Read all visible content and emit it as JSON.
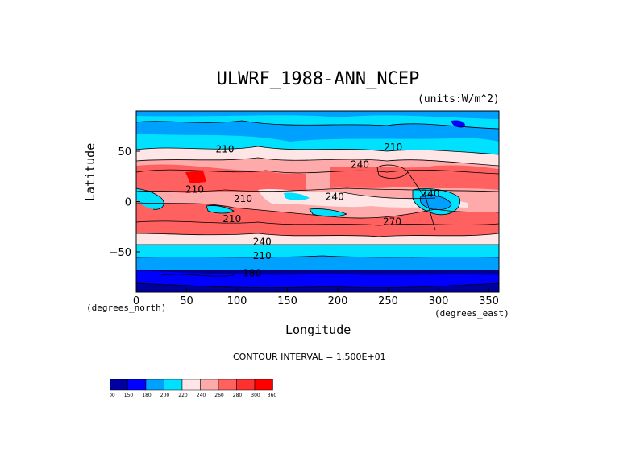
{
  "chart_data": {
    "type": "contour_map",
    "title": "ULWRF_1988-ANN_NCEP",
    "units": "(units:W/m^2)",
    "xlabel": "Longitude",
    "ylabel": "Latitude",
    "x_unit_label": "(degrees_east)",
    "y_unit_label": "(degrees_north)",
    "xlim": [
      0,
      360
    ],
    "ylim": [
      -90,
      90
    ],
    "x_ticks": [
      "0",
      "50",
      "100",
      "150",
      "200",
      "250",
      "300",
      "350"
    ],
    "y_ticks": [
      "50",
      "0",
      "−50"
    ],
    "x_tick_values": [
      0,
      50,
      100,
      150,
      200,
      250,
      300,
      350
    ],
    "y_tick_values": [
      50,
      0,
      -50
    ],
    "contour_interval_text": "CONTOUR INTERVAL = 1.500E+01",
    "colorbar": {
      "levels": [
        "100",
        "150",
        "180",
        "200",
        "220",
        "240",
        "260",
        "280",
        "300",
        "360"
      ],
      "colors": [
        "#0000a0",
        "#0000ff",
        "#00a0ff",
        "#00e0ff",
        "#ffe6e6",
        "#ffaaaa",
        "#ff6060",
        "#ff3030",
        "#ff0000"
      ]
    },
    "contour_labels": [
      {
        "text": "210",
        "lon": 88,
        "lat": 52
      },
      {
        "text": "210",
        "lon": 255,
        "lat": 54
      },
      {
        "text": "240",
        "lon": 222,
        "lat": 37
      },
      {
        "text": "210",
        "lon": 58,
        "lat": 12
      },
      {
        "text": "240",
        "lon": 197,
        "lat": 5
      },
      {
        "text": "240",
        "lon": 292,
        "lat": 8
      },
      {
        "text": "210",
        "lon": 106,
        "lat": 3
      },
      {
        "text": "210",
        "lon": 95,
        "lat": -17
      },
      {
        "text": "270",
        "lon": 254,
        "lat": -20
      },
      {
        "text": "240",
        "lon": 125,
        "lat": -40
      },
      {
        "text": "210",
        "lon": 125,
        "lat": -54
      },
      {
        "text": "180",
        "lon": 115,
        "lat": -71
      }
    ]
  }
}
